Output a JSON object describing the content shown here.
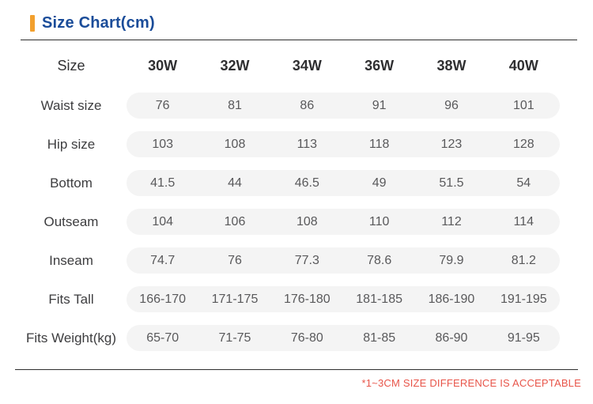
{
  "header": {
    "title": "Size Chart(cm)"
  },
  "table": {
    "size_label": "Size",
    "col_headers": [
      "30W",
      "32W",
      "34W",
      "36W",
      "38W",
      "40W"
    ],
    "rows": [
      {
        "label": "Waist size",
        "values": [
          "76",
          "81",
          "86",
          "91",
          "96",
          "101"
        ]
      },
      {
        "label": "Hip size",
        "values": [
          "103",
          "108",
          "113",
          "118",
          "123",
          "128"
        ]
      },
      {
        "label": "Bottom",
        "values": [
          "41.5",
          "44",
          "46.5",
          "49",
          "51.5",
          "54"
        ]
      },
      {
        "label": "Outseam",
        "values": [
          "104",
          "106",
          "108",
          "110",
          "112",
          "114"
        ]
      },
      {
        "label": "Inseam",
        "values": [
          "74.7",
          "76",
          "77.3",
          "78.6",
          "79.9",
          "81.2"
        ]
      },
      {
        "label": "Fits Tall",
        "values": [
          "166-170",
          "171-175",
          "176-180",
          "181-185",
          "186-190",
          "191-195"
        ]
      },
      {
        "label": "Fits Weight(kg)",
        "values": [
          "65-70",
          "71-75",
          "76-80",
          "81-85",
          "86-90",
          "91-95"
        ]
      }
    ]
  },
  "note": {
    "text": "*1~3CM SIZE DIFFERENCE IS ACCEPTABLE"
  },
  "colors": {
    "accent_orange": "#f2a02e",
    "title_blue": "#1a4c99",
    "note_red": "#e8554a",
    "pill_bg": "#f4f4f4"
  }
}
